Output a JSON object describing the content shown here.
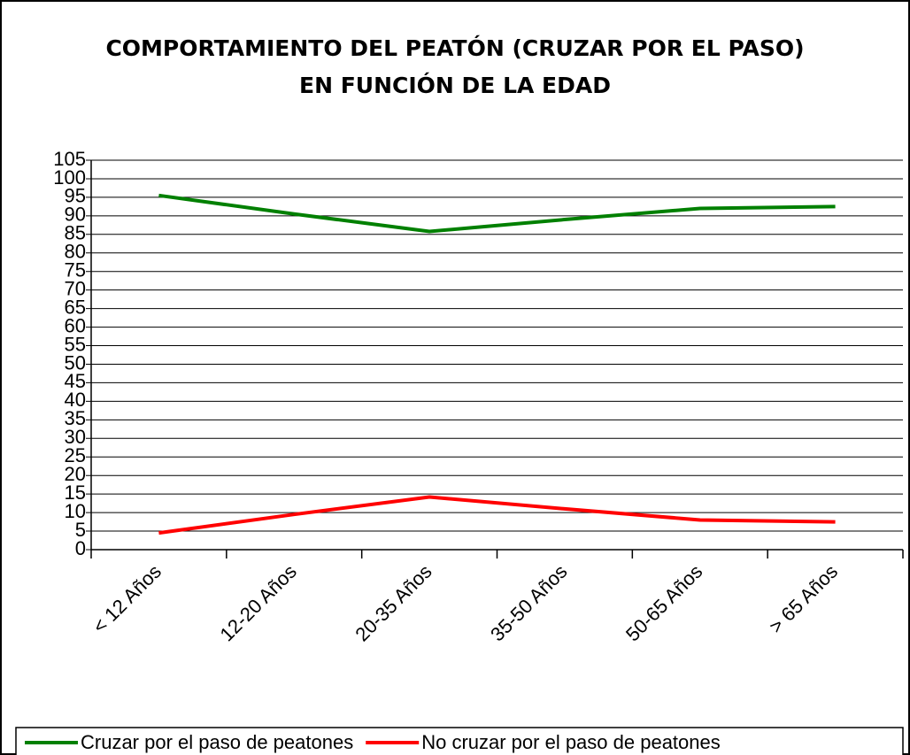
{
  "chart_data": {
    "type": "line",
    "title": "COMPORTAMIENTO DEL PEATÓN (CRUZAR POR EL PASO) EN FUNCIÓN DE LA EDAD",
    "categories": [
      "< 12 Años",
      "12-20 Años",
      "20-35 Años",
      "35-50 Años",
      "50-65 Años",
      "> 65 Años"
    ],
    "series": [
      {
        "name": "Cruzar por el paso de peatones",
        "color": "#008000",
        "values": [
          95.5,
          90.5,
          85.8,
          89,
          92,
          92.5
        ]
      },
      {
        "name": "No cruzar por el paso de peatones",
        "color": "#ff0000",
        "values": [
          4.5,
          9.5,
          14.2,
          11,
          8,
          7.5
        ]
      }
    ],
    "ylim": [
      0,
      105
    ],
    "yticks": [
      0,
      5,
      10,
      15,
      20,
      25,
      30,
      35,
      40,
      45,
      50,
      55,
      60,
      65,
      70,
      75,
      80,
      85,
      90,
      95,
      100,
      105
    ],
    "grid": true,
    "legend": "bottom"
  }
}
